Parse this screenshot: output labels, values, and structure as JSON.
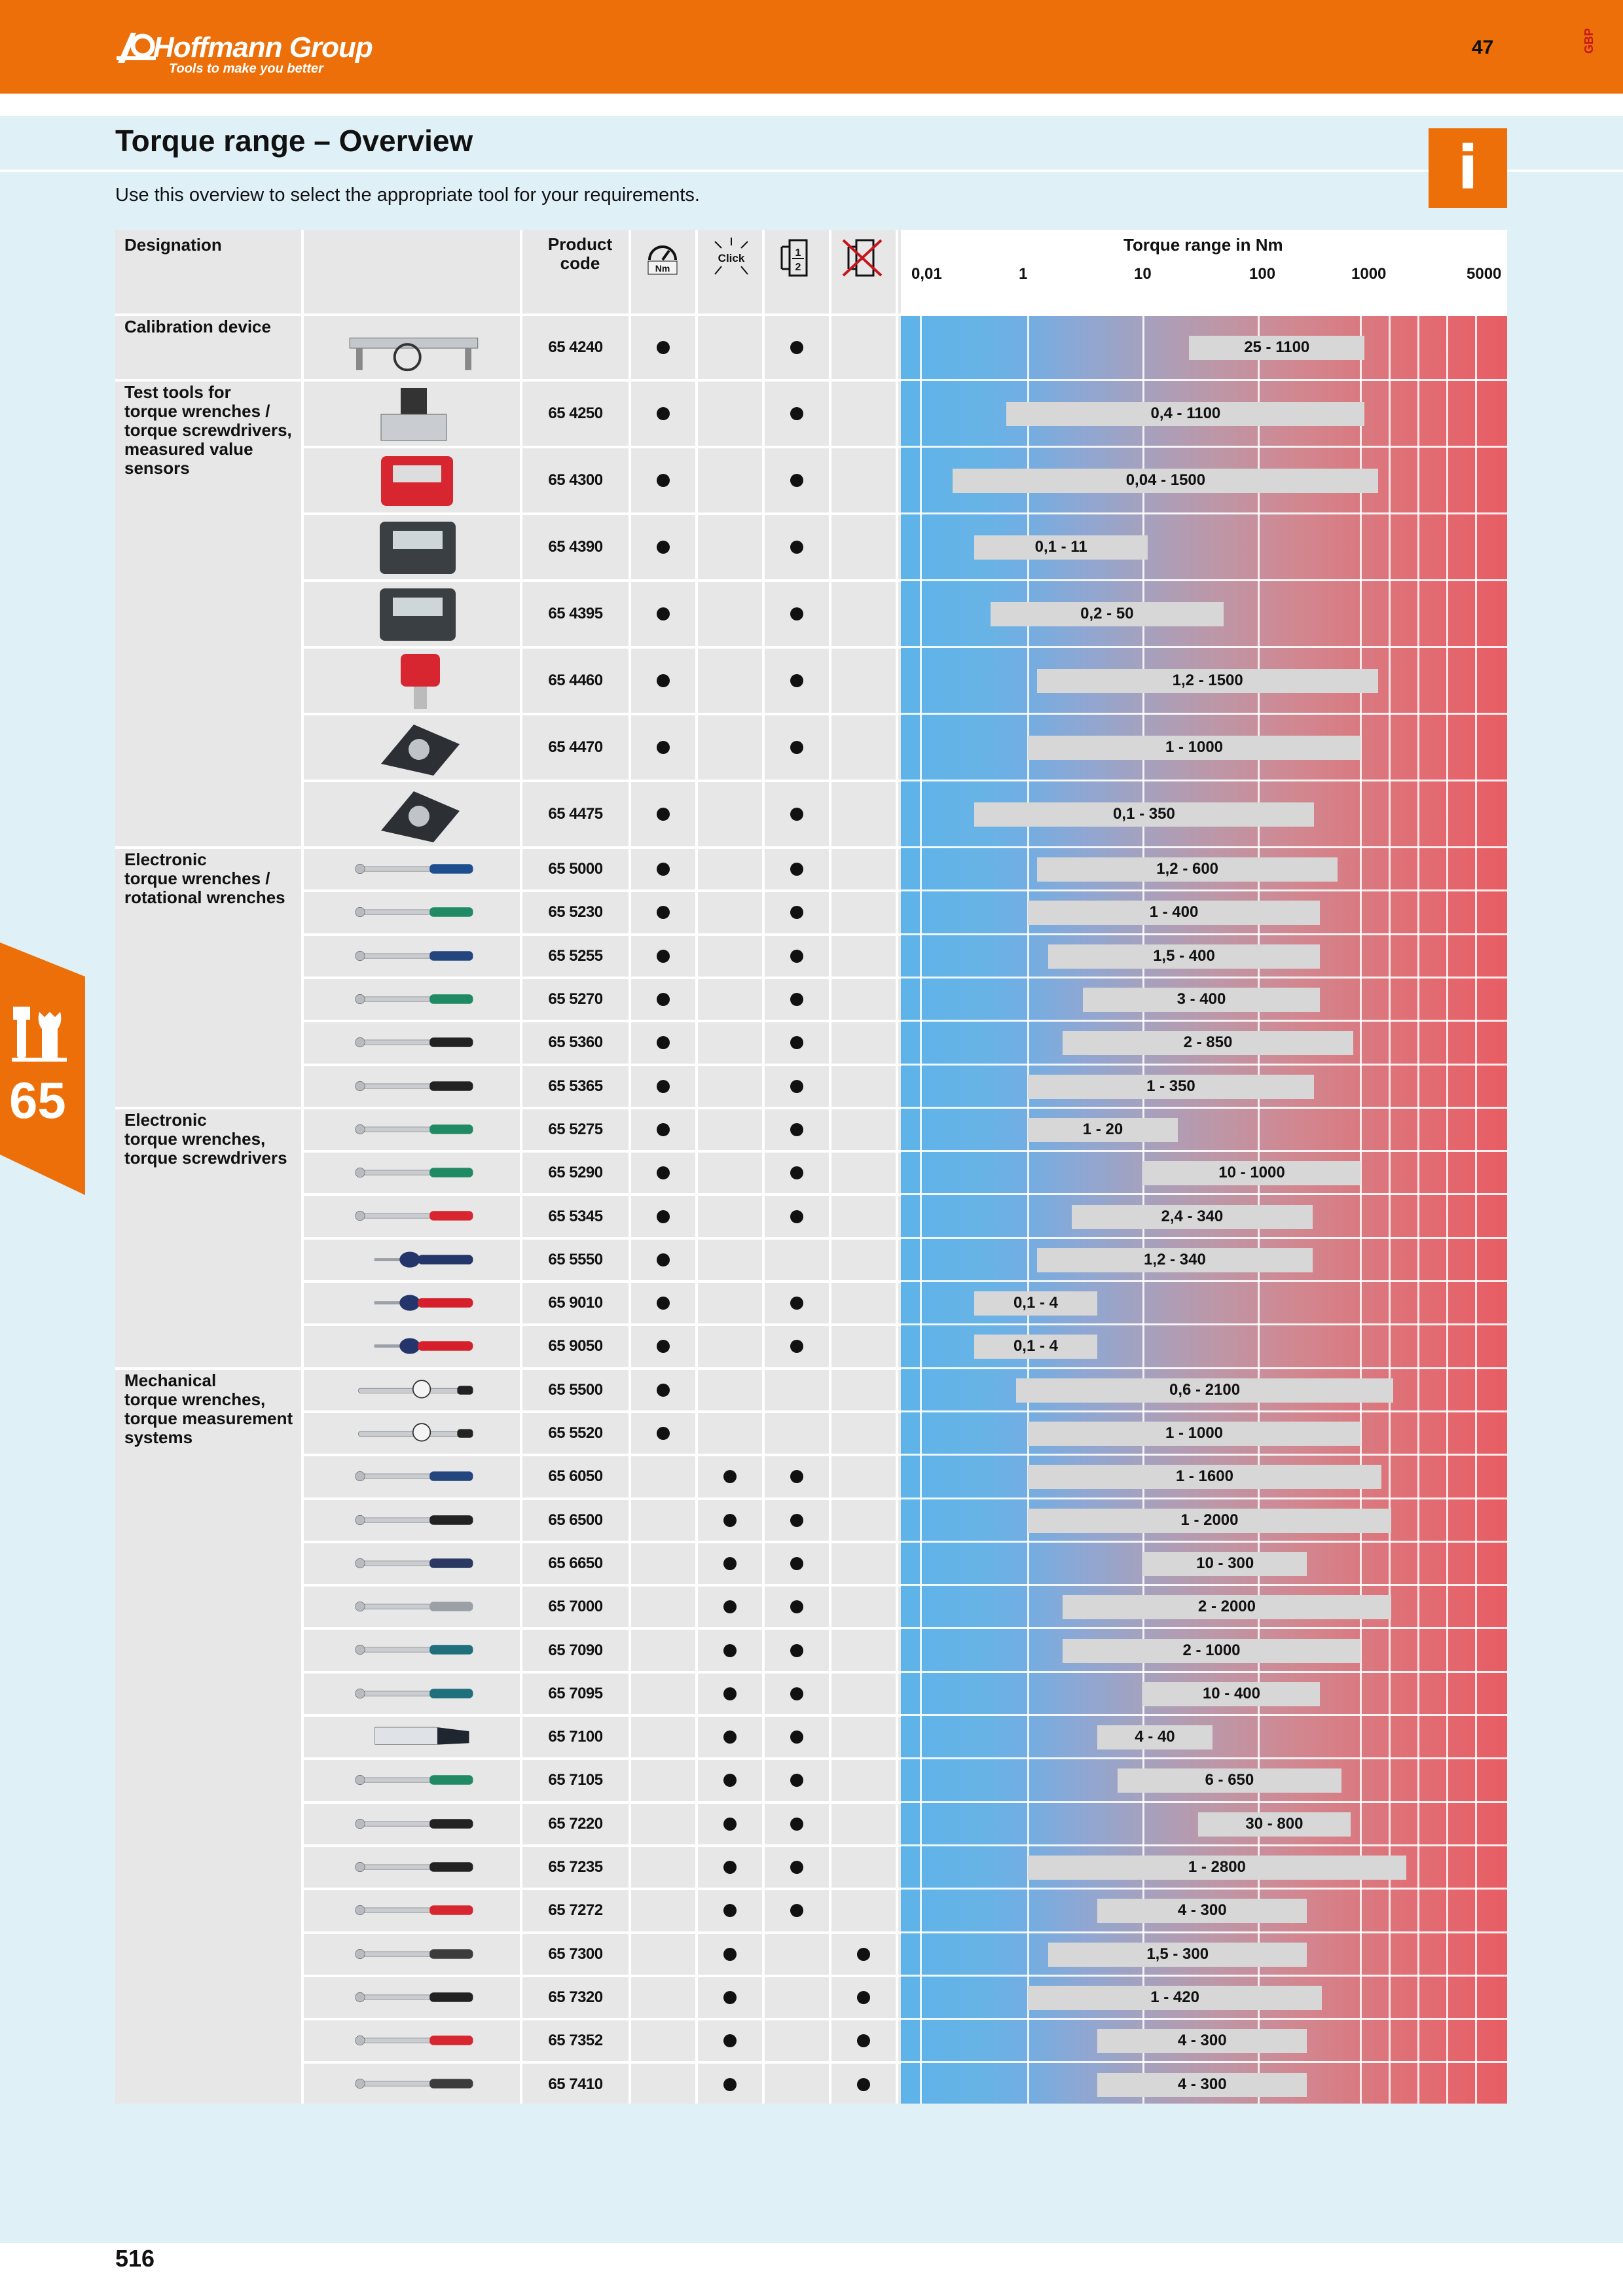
{
  "header": {
    "brand": "Hoffmann Group",
    "registered": "®",
    "tagline": "Tools to make you better",
    "page_number_top": "47",
    "language_code": "GBP",
    "brand_color": "#ec6f09"
  },
  "page": {
    "title": "Torque range – Overview",
    "subtitle": "Use this overview to select the appropriate tool for your requirements.",
    "info_icon": "i",
    "side_tab_number": "65",
    "side_tab_icon": "wrench-screwdriver-icon",
    "page_number_bottom": "516"
  },
  "table": {
    "headers": {
      "designation": "Designation",
      "product_code": "Product code",
      "torque_range": "Torque range in Nm",
      "col_icons": [
        {
          "name": "gauge-icon",
          "label": "Nm"
        },
        {
          "name": "click-icon",
          "label": "Click"
        },
        {
          "name": "half-icon",
          "label": "1/2"
        },
        {
          "name": "no-adjust-icon",
          "label": ""
        }
      ]
    },
    "scale": {
      "ticks": [
        "0,01",
        "1",
        "10",
        "100",
        "1000",
        "5000"
      ],
      "log_scale": true
    },
    "groups": [
      {
        "label": "Calibration device",
        "first_row": 0
      },
      {
        "label": "Test tools for\ntorque wrenches /\ntorque screwdrivers,\nmeasured value\nsensors",
        "first_row": 1
      },
      {
        "label": "Electronic\ntorque wrenches /\nrotational wrenches",
        "first_row": 8
      },
      {
        "label": "Electronic\ntorque wrenches,\ntorque screwdrivers",
        "first_row": 14
      },
      {
        "label": "Mechanical\ntorque wrenches,\ntorque measurement\nsystems",
        "first_row": 20
      }
    ],
    "rows": [
      {
        "code": "65 4240",
        "c1": true,
        "c2": false,
        "c3": true,
        "c4": false,
        "min": 25,
        "max": 1100,
        "range": "25 - 1100",
        "tool": "calibration-bench"
      },
      {
        "code": "65 4250",
        "c1": true,
        "c2": false,
        "c3": true,
        "c4": false,
        "min": 0.4,
        "max": 1100,
        "range": "0,4 - 1100",
        "tool": "tester-stand"
      },
      {
        "code": "65 4300",
        "c1": true,
        "c2": false,
        "c3": true,
        "c4": false,
        "min": 0.04,
        "max": 1500,
        "range": "0,04 - 1500",
        "tool": "tester-red"
      },
      {
        "code": "65 4390",
        "c1": true,
        "c2": false,
        "c3": true,
        "c4": false,
        "min": 0.1,
        "max": 11,
        "range": "0,1 - 11",
        "tool": "tester-box"
      },
      {
        "code": "65 4395",
        "c1": true,
        "c2": false,
        "c3": true,
        "c4": false,
        "min": 0.2,
        "max": 50,
        "range": "0,2 - 50",
        "tool": "tester-box"
      },
      {
        "code": "65 4460",
        "c1": true,
        "c2": false,
        "c3": true,
        "c4": false,
        "min": 1.2,
        "max": 1500,
        "range": "1,2 - 1500",
        "tool": "tester-sensor"
      },
      {
        "code": "65 4470",
        "c1": true,
        "c2": false,
        "c3": true,
        "c4": false,
        "min": 1,
        "max": 1000,
        "range": "1 - 1000",
        "tool": "tester-dial"
      },
      {
        "code": "65 4475",
        "c1": true,
        "c2": false,
        "c3": true,
        "c4": false,
        "min": 0.1,
        "max": 350,
        "range": "0,1 - 350",
        "tool": "tester-dial"
      },
      {
        "code": "65 5000",
        "c1": true,
        "c2": false,
        "c3": true,
        "c4": false,
        "min": 1.2,
        "max": 600,
        "range": "1,2 - 600",
        "tool": "wrench-digital-blue"
      },
      {
        "code": "65 5230",
        "c1": true,
        "c2": false,
        "c3": true,
        "c4": false,
        "min": 1,
        "max": 400,
        "range": "1 - 400",
        "tool": "wrench-green"
      },
      {
        "code": "65 5255",
        "c1": true,
        "c2": false,
        "c3": true,
        "c4": false,
        "min": 1.5,
        "max": 400,
        "range": "1,5 - 400",
        "tool": "wrench-blue"
      },
      {
        "code": "65 5270",
        "c1": true,
        "c2": false,
        "c3": true,
        "c4": false,
        "min": 3,
        "max": 400,
        "range": "3 - 400",
        "tool": "wrench-green"
      },
      {
        "code": "65 5360",
        "c1": true,
        "c2": false,
        "c3": true,
        "c4": false,
        "min": 2,
        "max": 850,
        "range": "2 - 850",
        "tool": "wrench-black"
      },
      {
        "code": "65 5365",
        "c1": true,
        "c2": false,
        "c3": true,
        "c4": false,
        "min": 1,
        "max": 350,
        "range": "1 - 350",
        "tool": "wrench-black"
      },
      {
        "code": "65 5275",
        "c1": true,
        "c2": false,
        "c3": true,
        "c4": false,
        "min": 1,
        "max": 20,
        "range": "1 - 20",
        "tool": "wrench-green"
      },
      {
        "code": "65 5290",
        "c1": true,
        "c2": false,
        "c3": true,
        "c4": false,
        "min": 10,
        "max": 1000,
        "range": "10 - 1000",
        "tool": "wrench-green"
      },
      {
        "code": "65 5345",
        "c1": true,
        "c2": false,
        "c3": true,
        "c4": false,
        "min": 2.4,
        "max": 340,
        "range": "2,4 - 340",
        "tool": "wrench-red"
      },
      {
        "code": "65 5550",
        "c1": true,
        "c2": false,
        "c3": false,
        "c4": false,
        "min": 1.2,
        "max": 340,
        "range": "1,2 - 340",
        "tool": "screwdriver-blue"
      },
      {
        "code": "65 9010",
        "c1": true,
        "c2": false,
        "c3": true,
        "c4": false,
        "min": 0.1,
        "max": 4,
        "range": "0,1 - 4",
        "tool": "screwdriver-red"
      },
      {
        "code": "65 9050",
        "c1": true,
        "c2": false,
        "c3": true,
        "c4": false,
        "min": 0.1,
        "max": 4,
        "range": "0,1 - 4",
        "tool": "screwdriver-red"
      },
      {
        "code": "65 5500",
        "c1": true,
        "c2": false,
        "c3": false,
        "c4": false,
        "min": 0.6,
        "max": 2100,
        "range": "0,6 - 2100",
        "tool": "wrench-dial"
      },
      {
        "code": "65 5520",
        "c1": true,
        "c2": false,
        "c3": false,
        "c4": false,
        "min": 1,
        "max": 1000,
        "range": "1 - 1000",
        "tool": "wrench-dial"
      },
      {
        "code": "65 6050",
        "c1": false,
        "c2": true,
        "c3": true,
        "c4": false,
        "min": 1,
        "max": 1600,
        "range": "1 - 1600",
        "tool": "wrench-blue"
      },
      {
        "code": "65 6500",
        "c1": false,
        "c2": true,
        "c3": true,
        "c4": false,
        "min": 1,
        "max": 2000,
        "range": "1 - 2000",
        "tool": "wrench-black"
      },
      {
        "code": "65 6650",
        "c1": false,
        "c2": true,
        "c3": true,
        "c4": false,
        "min": 10,
        "max": 300,
        "range": "10 - 300",
        "tool": "wrench-navy"
      },
      {
        "code": "65 7000",
        "c1": false,
        "c2": true,
        "c3": true,
        "c4": false,
        "min": 2,
        "max": 2000,
        "range": "2 - 2000",
        "tool": "wrench-silver"
      },
      {
        "code": "65 7090",
        "c1": false,
        "c2": true,
        "c3": true,
        "c4": false,
        "min": 2,
        "max": 1000,
        "range": "2 - 1000",
        "tool": "wrench-teal"
      },
      {
        "code": "65 7095",
        "c1": false,
        "c2": true,
        "c3": true,
        "c4": false,
        "min": 10,
        "max": 400,
        "range": "10 - 400",
        "tool": "wrench-teal"
      },
      {
        "code": "65 7100",
        "c1": false,
        "c2": true,
        "c3": true,
        "c4": false,
        "min": 4,
        "max": 40,
        "range": "4 - 40",
        "tool": "wrench-case"
      },
      {
        "code": "65 7105",
        "c1": false,
        "c2": true,
        "c3": true,
        "c4": false,
        "min": 6,
        "max": 650,
        "range": "6 - 650",
        "tool": "wrench-green"
      },
      {
        "code": "65 7220",
        "c1": false,
        "c2": true,
        "c3": true,
        "c4": false,
        "min": 30,
        "max": 800,
        "range": "30 - 800",
        "tool": "wrench-black"
      },
      {
        "code": "65 7235",
        "c1": false,
        "c2": true,
        "c3": true,
        "c4": false,
        "min": 1,
        "max": 2800,
        "range": "1 - 2800",
        "tool": "wrench-black"
      },
      {
        "code": "65 7272",
        "c1": false,
        "c2": true,
        "c3": true,
        "c4": false,
        "min": 4,
        "max": 300,
        "range": "4 - 300",
        "tool": "wrench-red"
      },
      {
        "code": "65 7300",
        "c1": false,
        "c2": true,
        "c3": false,
        "c4": true,
        "min": 1.5,
        "max": 300,
        "range": "1,5 - 300",
        "tool": "wrench-grey"
      },
      {
        "code": "65 7320",
        "c1": false,
        "c2": true,
        "c3": false,
        "c4": true,
        "min": 1,
        "max": 420,
        "range": "1 - 420",
        "tool": "wrench-black"
      },
      {
        "code": "65 7352",
        "c1": false,
        "c2": true,
        "c3": false,
        "c4": true,
        "min": 4,
        "max": 300,
        "range": "4 - 300",
        "tool": "wrench-red"
      },
      {
        "code": "65 7410",
        "c1": false,
        "c2": true,
        "c3": false,
        "c4": true,
        "min": 4,
        "max": 300,
        "range": "4 - 300",
        "tool": "wrench-grey"
      }
    ]
  }
}
